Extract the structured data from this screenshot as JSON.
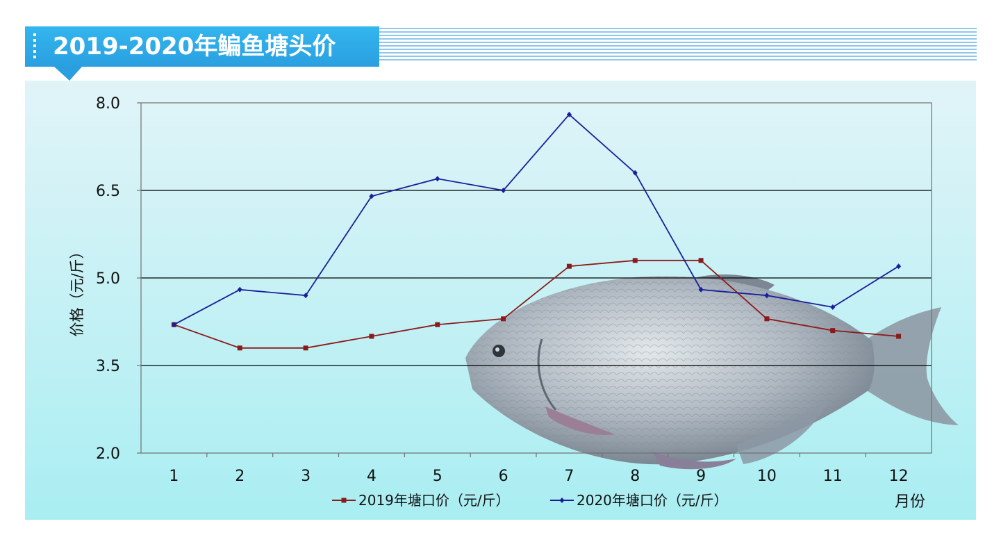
{
  "header": {
    "title": "2019-2020年鳊鱼塘头价"
  },
  "chart_data": {
    "type": "line",
    "title": "2019-2020年鳊鱼塘头价",
    "xlabel": "月份",
    "ylabel": "价格（元/斤）",
    "categories": [
      "1",
      "2",
      "3",
      "4",
      "5",
      "6",
      "7",
      "8",
      "9",
      "10",
      "11",
      "12"
    ],
    "ylim": [
      2.0,
      8.0
    ],
    "yticks": [
      "2.0",
      "3.5",
      "5.0",
      "6.5",
      "8.0"
    ],
    "grid": true,
    "legend_position": "bottom",
    "series": [
      {
        "name": "2019年塘口价（元/斤）",
        "color": "#8b1a1a",
        "marker": "square",
        "values": [
          4.2,
          3.8,
          3.8,
          4.0,
          4.2,
          4.3,
          5.2,
          5.3,
          5.3,
          4.3,
          4.1,
          4.0
        ]
      },
      {
        "name": "2020年塘口价（元/斤）",
        "color": "#1a1f99",
        "marker": "diamond",
        "values": [
          4.2,
          4.8,
          4.7,
          6.4,
          6.7,
          6.5,
          7.8,
          6.8,
          4.8,
          4.7,
          4.5,
          5.2
        ]
      }
    ]
  },
  "decoration": {
    "background_image": "bream-fish-illustration"
  }
}
